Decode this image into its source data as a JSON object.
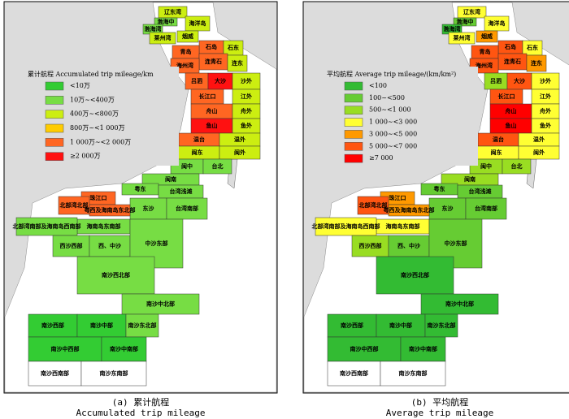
{
  "regions": [
    "辽东湾",
    "渤海中",
    "渤海湾",
    "海洋岛",
    "莱州湾",
    "烟威",
    "石岛",
    "石东",
    "青岛",
    "连青石",
    "连东",
    "海州湾",
    "吕泗",
    "大沙",
    "沙外",
    "长江口",
    "江外",
    "舟山",
    "舟外",
    "鱼山",
    "鱼外",
    "温台",
    "温外",
    "闽东",
    "闽外",
    "闽中",
    "台北",
    "闽南",
    "粤东",
    "台湾浅滩",
    "珠江口",
    "东沙",
    "台湾南部",
    "北部湾北部",
    "粤西及海南岛东北部",
    "海南岛东南部",
    "北部湾南部及海南岛西南部",
    "西沙西部",
    "西、中沙",
    "中沙东部",
    "南沙西北部",
    "南沙中北部",
    "南沙西部",
    "南沙中部",
    "南沙东北部",
    "南沙中西部",
    "南沙中南部",
    "南沙西南部",
    "南沙东南部"
  ],
  "panels": [
    {
      "legend_title": "累计航程 Accumulated trip mileage/km",
      "legend": [
        {
          "label": "<10万",
          "color": "#33cc33"
        },
        {
          "label": "10万~<400万",
          "color": "#77dd44"
        },
        {
          "label": "400万~<800万",
          "color": "#ccee11"
        },
        {
          "label": "800万~<1 000万",
          "color": "#ffcc00"
        },
        {
          "label": "1 000万~<2 000万",
          "color": "#ff6622"
        },
        {
          "label": "≥2 000万",
          "color": "#ff1111"
        }
      ],
      "region_colors": [
        "#ccee11",
        "#77dd44",
        "#77dd44",
        "#ccee11",
        "#ccee11",
        "#ccee11",
        "#ff6622",
        "#ccee11",
        "#ff6622",
        "#ff6622",
        "#ccee11",
        "#ff6622",
        "#ff6622",
        "#ff1111",
        "#ccee11",
        "#ff6622",
        "#ccee11",
        "#ff6622",
        "#ccee11",
        "#ff1111",
        "#ccee11",
        "#ff6622",
        "#ccee11",
        "#ccee11",
        "#ccee11",
        "#77dd44",
        "#77dd44",
        "#77dd44",
        "#77dd44",
        "#77dd44",
        "#ff6622",
        "#77dd44",
        "#77dd44",
        "#ff6622",
        "#ff6622",
        "#77dd44",
        "#77dd44",
        "#77dd44",
        "#77dd44",
        "#77dd44",
        "#77dd44",
        "#77dd44",
        "#33cc33",
        "#33cc33",
        "#77dd44",
        "#33cc33",
        "#33cc33",
        "#ffffff",
        "#ffffff"
      ],
      "caption_cn": "(a) 累计航程",
      "caption_en": "Accumulated trip mileage"
    },
    {
      "legend_title": "平均航程 Average trip mileage/(km/km²)",
      "legend": [
        {
          "label": "<100",
          "color": "#33bb33"
        },
        {
          "label": "100~<500",
          "color": "#66cc33"
        },
        {
          "label": "500~<1 000",
          "color": "#99dd22"
        },
        {
          "label": "1 000~<3 000",
          "color": "#ffff33"
        },
        {
          "label": "3 000~<5 000",
          "color": "#ff9900"
        },
        {
          "label": "5 000~<7 000",
          "color": "#ff5511"
        },
        {
          "label": "≥7 000",
          "color": "#ff0000"
        }
      ],
      "region_colors": [
        "#ffff33",
        "#66cc33",
        "#33bb33",
        "#ffff33",
        "#ffff33",
        "#ff9900",
        "#ff5511",
        "#ffff33",
        "#ff5511",
        "#ff5511",
        "#ff9900",
        "#ff5511",
        "#99dd22",
        "#ff5511",
        "#ffff33",
        "#ff5511",
        "#ffff33",
        "#ff0000",
        "#ffff33",
        "#ff0000",
        "#ffff33",
        "#ff5511",
        "#ffff33",
        "#ffff33",
        "#ffff33",
        "#99dd22",
        "#99dd22",
        "#99dd22",
        "#66cc33",
        "#66cc33",
        "#ff9900",
        "#66cc33",
        "#66cc33",
        "#ff5511",
        "#ff9900",
        "#ffff33",
        "#ffff33",
        "#99dd22",
        "#66cc33",
        "#66cc33",
        "#33bb33",
        "#33bb33",
        "#33bb33",
        "#33bb33",
        "#33bb33",
        "#33bb33",
        "#33bb33",
        "#ffffff",
        "#ffffff"
      ],
      "caption_cn": "(b) 平均航程",
      "caption_en": "Average trip mileage"
    }
  ]
}
